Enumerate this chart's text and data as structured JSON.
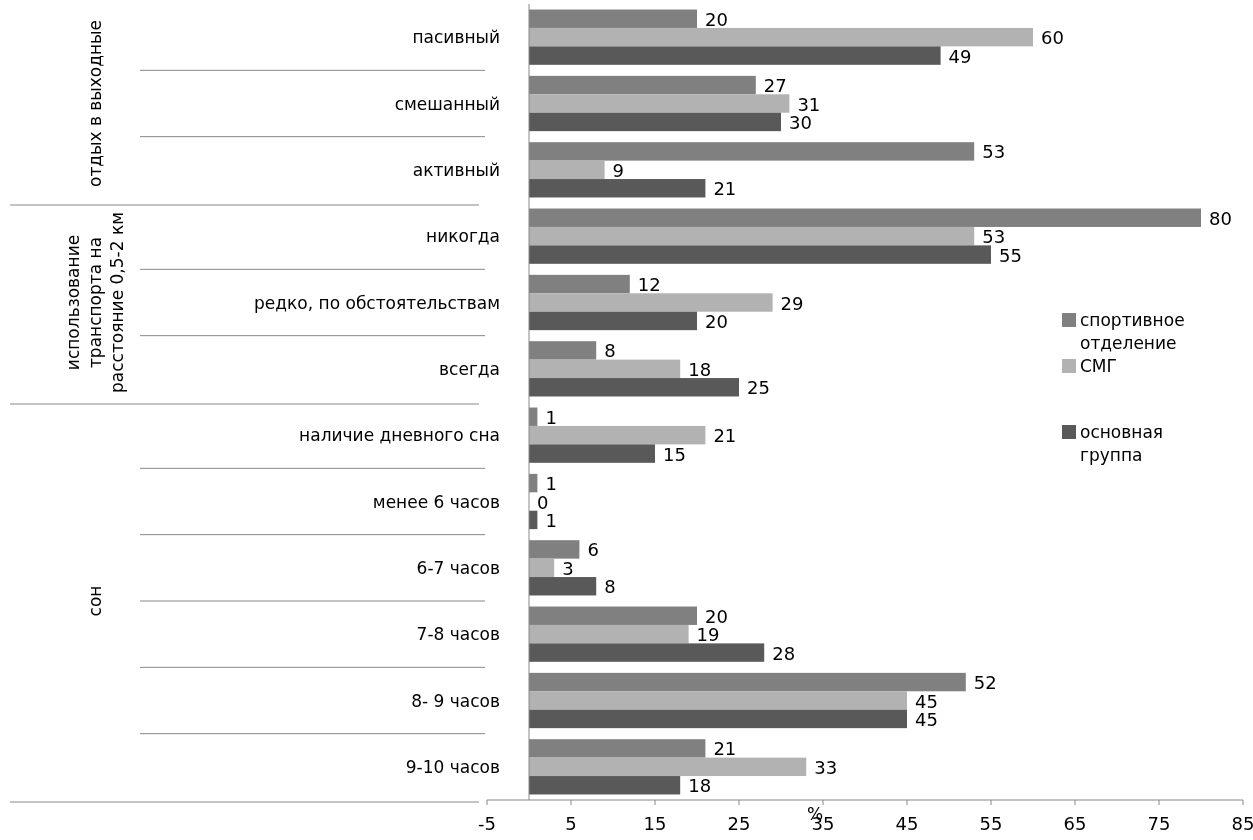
{
  "chart_data": {
    "type": "bar",
    "orientation": "horizontal",
    "categories": [
      "пасивный",
      "смешанный",
      "активный",
      "никогда",
      "редко, по обстоятельствам",
      "всегда",
      "наличие дневного сна",
      "менее 6 часов",
      "6-7 часов",
      "7-8 часов",
      "8- 9 часов",
      "9-10 часов"
    ],
    "series": [
      {
        "name": "спортивное отделение",
        "color": "#808080",
        "values": [
          20,
          27,
          53,
          80,
          12,
          8,
          1,
          1,
          6,
          20,
          52,
          21
        ]
      },
      {
        "name": "СМГ",
        "color": "#b2b2b2",
        "values": [
          60,
          31,
          9,
          53,
          29,
          18,
          21,
          0,
          3,
          19,
          45,
          33
        ]
      },
      {
        "name": "основная группа",
        "color": "#595959",
        "values": [
          49,
          30,
          21,
          55,
          20,
          25,
          15,
          1,
          8,
          28,
          45,
          18
        ]
      }
    ],
    "xlim": [
      -5,
      85
    ],
    "xticks": [
      -5,
      5,
      15,
      25,
      35,
      45,
      55,
      65,
      75,
      85
    ],
    "xlabel": "%",
    "annotations": [
      "отдых в выходные",
      "использование транспорта на расстояние 0,5-2 км",
      "сон"
    ],
    "data_labels": true,
    "legend": "right",
    "grid": false
  }
}
